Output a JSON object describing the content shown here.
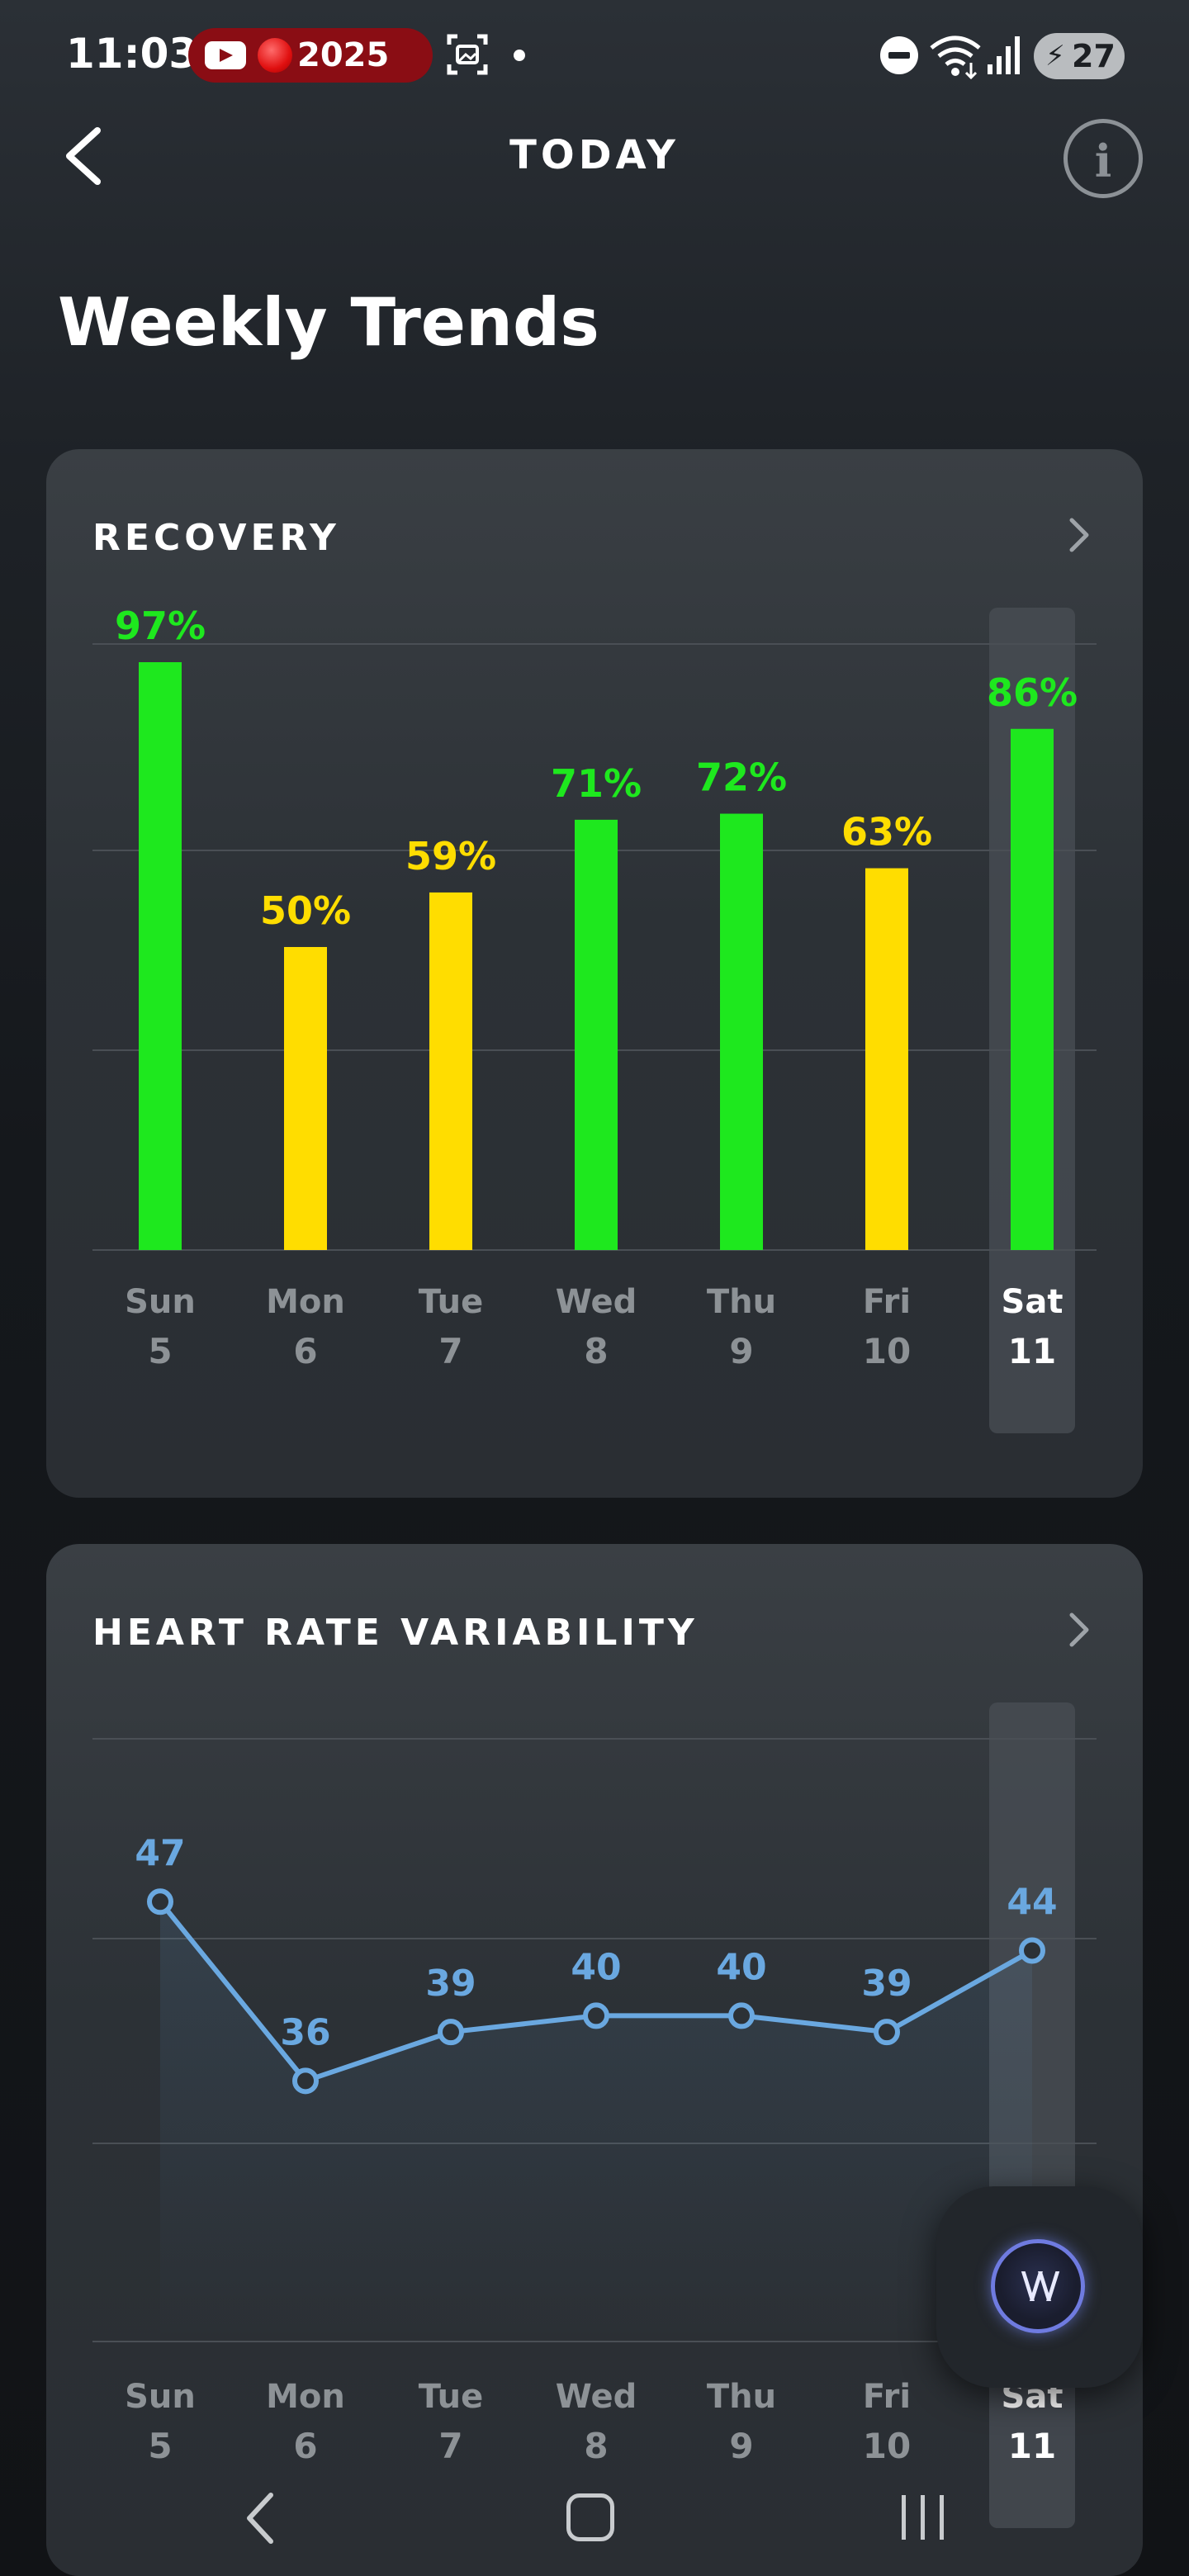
{
  "status_bar": {
    "time": "11:03",
    "notification_text": "2025",
    "battery_level": "27",
    "icons": [
      "youtube-icon",
      "recording-dot-icon",
      "screenshot-icon",
      "dot-icon",
      "do-not-disturb-icon",
      "wifi-icon",
      "signal-icon",
      "battery-charging-icon"
    ]
  },
  "header": {
    "back_icon": "chevron-left-icon",
    "title": "TODAY",
    "info_glyph": "i"
  },
  "page_title": "Weekly Trends",
  "days": [
    {
      "name": "Sun",
      "num": "5"
    },
    {
      "name": "Mon",
      "num": "6"
    },
    {
      "name": "Tue",
      "num": "7"
    },
    {
      "name": "Wed",
      "num": "8"
    },
    {
      "name": "Thu",
      "num": "9"
    },
    {
      "name": "Fri",
      "num": "10"
    },
    {
      "name": "Sat",
      "num": "11"
    }
  ],
  "selected_day_index": 6,
  "colors": {
    "green": "#1ee81e",
    "yellow": "#ffdd00",
    "hrv_blue": "#6aa8e0",
    "grid": "#4a4f55",
    "highlight": "#4a4f55"
  },
  "recovery": {
    "title": "RECOVERY",
    "chevron_icon": "chevron-right-icon"
  },
  "hrv": {
    "title": "HEART RATE VARIABILITY",
    "chevron_icon": "chevron-right-icon"
  },
  "coach_button": {
    "glyph": "\\/\\/",
    "icon": "whoop-coach-icon"
  },
  "nav_bar": {
    "icons": [
      "nav-back-icon",
      "nav-home-icon",
      "nav-recents-icon"
    ]
  },
  "chart_data": [
    {
      "type": "bar",
      "title": "RECOVERY",
      "categories": [
        "Sun 5",
        "Mon 6",
        "Tue 7",
        "Wed 8",
        "Thu 9",
        "Fri 10",
        "Sat 11"
      ],
      "values": [
        97,
        50,
        59,
        71,
        72,
        63,
        86
      ],
      "value_labels": [
        "97%",
        "50%",
        "59%",
        "71%",
        "72%",
        "63%",
        "86%"
      ],
      "bar_colors": [
        "#1ee81e",
        "#ffdd00",
        "#ffdd00",
        "#1ee81e",
        "#1ee81e",
        "#ffdd00",
        "#1ee81e"
      ],
      "ylim": [
        0,
        100
      ],
      "grid": true
    },
    {
      "type": "line",
      "title": "HEART RATE VARIABILITY",
      "categories": [
        "Sun 5",
        "Mon 6",
        "Tue 7",
        "Wed 8",
        "Thu 9",
        "Fri 10",
        "Sat 11"
      ],
      "values": [
        47,
        36,
        39,
        40,
        40,
        39,
        44
      ],
      "value_labels": [
        "47",
        "36",
        "39",
        "40",
        "40",
        "39",
        "44"
      ],
      "color": "#6aa8e0",
      "ylim": [
        20,
        57
      ],
      "grid": true
    }
  ]
}
